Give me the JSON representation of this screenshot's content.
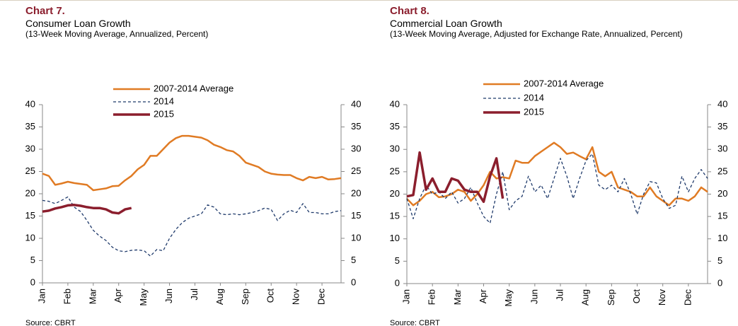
{
  "chart_data": [
    {
      "type": "line",
      "title": "Chart 7.",
      "subtitle": "Consumer Loan Growth",
      "note": "(13-Week Moving Average, Annualized, Percent)",
      "source": "Source: CBRT",
      "categories": [
        "Jan",
        null,
        null,
        null,
        "Feb",
        null,
        null,
        null,
        "Mar",
        null,
        null,
        null,
        "Apr",
        null,
        null,
        null,
        "May",
        null,
        null,
        null,
        "Jun",
        null,
        null,
        null,
        "Jul",
        null,
        null,
        null,
        "Aug",
        null,
        null,
        null,
        "Sep",
        null,
        null,
        null,
        "Oct",
        null,
        null,
        null,
        "Nov",
        null,
        null,
        null,
        "Dec",
        null,
        null,
        null
      ],
      "series": [
        {
          "name": "2007-2014 Average",
          "color": "#e07b24",
          "width": 2.5,
          "dash": false,
          "values": [
            24.5,
            24,
            22,
            22.3,
            22.7,
            22.4,
            22.2,
            22,
            20.8,
            21,
            21.2,
            21.7,
            21.8,
            23,
            24,
            25.5,
            26.5,
            28.5,
            28.5,
            30,
            31.5,
            32.5,
            33,
            33,
            32.8,
            32.6,
            32,
            31,
            30.5,
            29.8,
            29.5,
            28.5,
            27,
            26.5,
            26,
            25,
            24.5,
            24.3,
            24.2,
            24.2,
            23.5,
            23,
            23.8,
            23.5,
            23.8,
            23.2,
            23.3,
            23.5
          ]
        },
        {
          "name": "2014",
          "color": "#1f3a6b",
          "width": 1.3,
          "dash": true,
          "values": [
            18.5,
            18.3,
            17.8,
            18.5,
            19.3,
            17,
            16,
            14,
            11.8,
            10.5,
            9.5,
            8,
            7.2,
            7,
            7.3,
            7.4,
            7.2,
            6,
            7.5,
            7.2,
            10,
            12,
            13.5,
            14.5,
            15,
            15.5,
            17.5,
            17,
            15.5,
            15.3,
            15.5,
            15.3,
            15.5,
            15.8,
            16.2,
            16.8,
            16.5,
            14,
            15.5,
            16.3,
            15.8,
            17.8,
            15.8,
            15.8,
            15.5,
            15.5,
            16,
            16.2
          ]
        },
        {
          "name": "2015",
          "color": "#8b1e2d",
          "width": 3.5,
          "dash": false,
          "values": [
            16,
            16.2,
            16.7,
            17,
            17.4,
            17.5,
            17.3,
            17,
            16.8,
            16.8,
            16.5,
            15.8,
            15.6,
            16.5,
            16.8,
            null,
            null,
            null,
            null,
            null,
            null,
            null,
            null,
            null,
            null,
            null,
            null,
            null,
            null,
            null,
            null,
            null,
            null,
            null,
            null,
            null,
            null,
            null,
            null,
            null,
            null,
            null,
            null,
            null,
            null,
            null,
            null,
            null
          ]
        }
      ],
      "ylim": [
        0,
        40
      ],
      "yticks": [
        0,
        5,
        10,
        15,
        20,
        25,
        30,
        35,
        40
      ],
      "y2lim": [
        0,
        40
      ],
      "y2ticks": [
        0,
        5,
        10,
        15,
        20,
        25,
        30,
        35,
        40
      ],
      "grid": false
    },
    {
      "type": "line",
      "title": "Chart 8.",
      "subtitle": "Commercial Loan Growth",
      "note": "(13-Week Moving Average, Adjusted for Exchange Rate, Annualized, Percent)",
      "source": "Source: CBRT",
      "categories": [
        "Jan",
        null,
        null,
        null,
        "Feb",
        null,
        null,
        null,
        "Mar",
        null,
        null,
        null,
        "Apr",
        null,
        null,
        null,
        "May",
        null,
        null,
        null,
        "Jun",
        null,
        null,
        null,
        "Jul",
        null,
        null,
        null,
        "Aug",
        null,
        null,
        null,
        "Sep",
        null,
        null,
        null,
        "Oct",
        null,
        null,
        null,
        "Nov",
        null,
        null,
        null,
        "Dec",
        null,
        null,
        null
      ],
      "series": [
        {
          "name": "2007-2014 Average",
          "color": "#e07b24",
          "width": 2.5,
          "dash": false,
          "values": [
            19,
            17.5,
            18.5,
            20,
            20.5,
            19.3,
            19.5,
            20,
            21,
            20.5,
            18.5,
            20,
            22,
            25,
            23.5,
            23.8,
            23.5,
            27.5,
            27,
            27,
            28.5,
            29.5,
            30.5,
            31.5,
            30.5,
            29,
            29.3,
            28.5,
            27.8,
            30.5,
            25,
            24,
            25,
            21.5,
            21,
            20.5,
            19.5,
            19.5,
            21.5,
            19.5,
            18.5,
            17.5,
            19,
            19,
            18.5,
            19.5,
            21.5,
            20.5
          ]
        },
        {
          "name": "2014",
          "color": "#1f3a6b",
          "width": 1.3,
          "dash": true,
          "values": [
            19,
            14.5,
            19,
            22,
            20,
            20.5,
            19,
            20.5,
            18,
            19,
            21.5,
            18,
            15,
            13.5,
            20,
            25,
            16.5,
            18.5,
            19.5,
            24,
            20.5,
            22,
            19,
            23.5,
            28,
            24,
            19,
            23.5,
            27.5,
            29,
            22,
            21,
            22,
            20.5,
            23.5,
            20,
            15.5,
            20,
            22.8,
            22.5,
            19,
            16.8,
            17.5,
            24,
            20.5,
            23.5,
            25.5,
            23.5
          ]
        },
        {
          "name": "2015",
          "color": "#8b1e2d",
          "width": 3.5,
          "dash": false,
          "values": [
            19.5,
            19.8,
            29.3,
            21,
            23.5,
            20.5,
            20.5,
            23.5,
            23,
            21,
            20.5,
            20.5,
            18.3,
            24,
            28,
            19,
            null,
            null,
            null,
            null,
            null,
            null,
            null,
            null,
            null,
            null,
            null,
            null,
            null,
            null,
            null,
            null,
            null,
            null,
            null,
            null,
            null,
            null,
            null,
            null,
            null,
            null,
            null,
            null,
            null,
            null,
            null,
            null
          ]
        }
      ],
      "ylim": [
        0,
        40
      ],
      "yticks": [
        0,
        5,
        10,
        15,
        20,
        25,
        30,
        35,
        40
      ],
      "y2lim": [
        0,
        40
      ],
      "y2ticks": [
        0,
        5,
        10,
        15,
        20,
        25,
        30,
        35,
        40
      ],
      "grid": false
    }
  ]
}
